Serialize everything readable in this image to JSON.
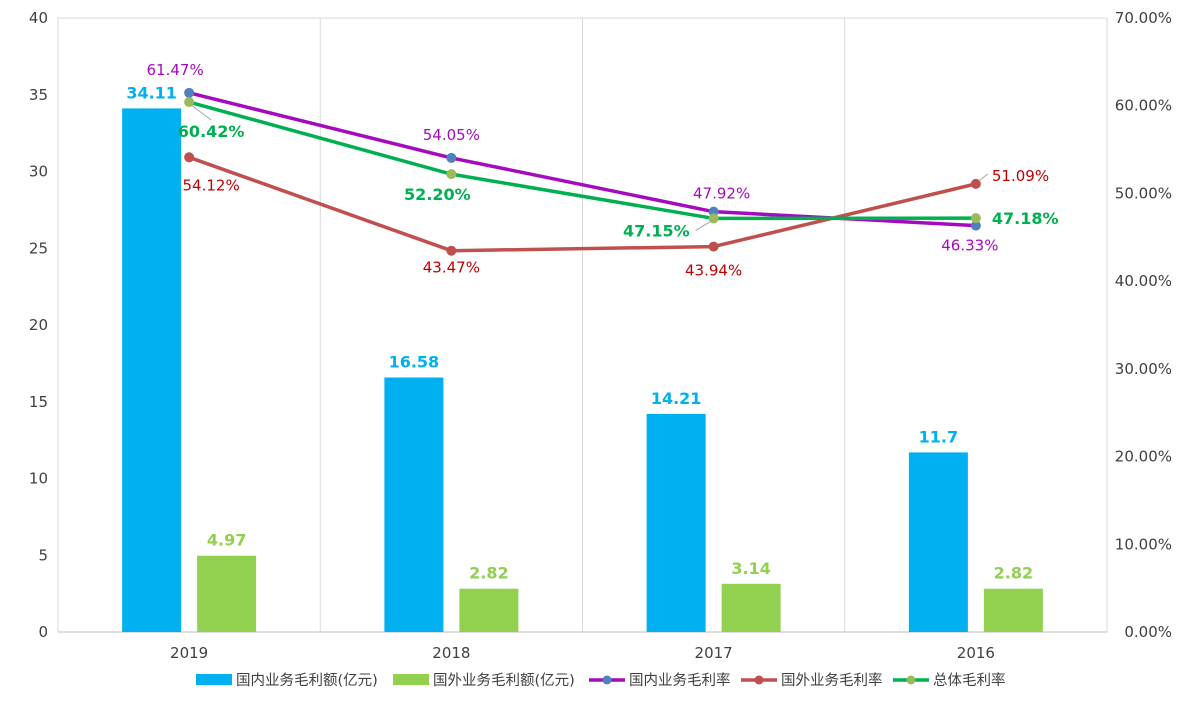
{
  "chart_data": {
    "type": "bar",
    "categories": [
      "2019",
      "2018",
      "2017",
      "2016"
    ],
    "y_left": {
      "ylim": [
        0,
        40
      ],
      "ticks": [
        "0",
        "5",
        "10",
        "15",
        "20",
        "25",
        "30",
        "35",
        "40"
      ]
    },
    "y_right": {
      "ylim": [
        0,
        70
      ],
      "ticks": [
        "0.00%",
        "10.00%",
        "20.00%",
        "30.00%",
        "40.00%",
        "50.00%",
        "60.00%",
        "70.00%"
      ]
    },
    "legend_position": "bottom",
    "series": [
      {
        "name": "国内业务毛利额(亿元)",
        "kind": "bar",
        "axis": "left",
        "color": "#00B0F0",
        "values": [
          34.11,
          16.58,
          14.21,
          11.7
        ],
        "labels": [
          "34.11",
          "16.58",
          "14.21",
          "11.7"
        ]
      },
      {
        "name": "国外业务毛利额(亿元)",
        "kind": "bar",
        "axis": "left",
        "color": "#92D050",
        "values": [
          4.97,
          2.82,
          3.14,
          2.82
        ],
        "labels": [
          "4.97",
          "2.82",
          "3.14",
          "2.82"
        ]
      },
      {
        "name": "国内业务毛利率",
        "kind": "line",
        "axis": "right",
        "color": "#A50BBE",
        "marker": "#4F81BD",
        "values": [
          61.47,
          54.05,
          47.92,
          46.33
        ],
        "labels": [
          "61.47%",
          "54.05%",
          "47.92%",
          "46.33%"
        ]
      },
      {
        "name": "国外业务毛利率",
        "kind": "line",
        "axis": "right",
        "color": "#C0504D",
        "marker": "#C0504D",
        "values": [
          54.12,
          43.47,
          43.94,
          51.09
        ],
        "labels": [
          "54.12%",
          "43.47%",
          "43.94%",
          "51.09%"
        ]
      },
      {
        "name": "总体毛利率",
        "kind": "line",
        "axis": "right",
        "color": "#00B050",
        "marker": "#9BBB59",
        "values": [
          60.42,
          52.2,
          47.15,
          47.18
        ],
        "labels": [
          "60.42%",
          "52.20%",
          "47.15%",
          "47.18%"
        ]
      }
    ]
  }
}
